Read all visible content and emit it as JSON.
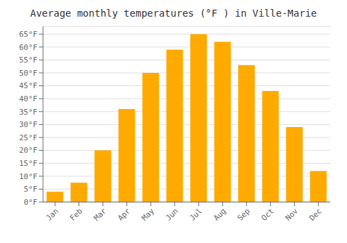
{
  "chart_data": {
    "type": "bar",
    "title": "Average monthly temperatures (°F ) in Ville-Marie",
    "categories": [
      "Jan",
      "Feb",
      "Mar",
      "Apr",
      "May",
      "Jun",
      "Jul",
      "Aug",
      "Sep",
      "Oct",
      "Nov",
      "Dec"
    ],
    "values": [
      4,
      7.5,
      20,
      36,
      50,
      59,
      65,
      62,
      53,
      43,
      29,
      12
    ],
    "color": "#FFAA00",
    "ylim": [
      0,
      68
    ],
    "yticks": [
      {
        "value": 0,
        "label": "0°F"
      },
      {
        "value": 5,
        "label": "5°F"
      },
      {
        "value": 10,
        "label": "10°F"
      },
      {
        "value": 15,
        "label": "15°F"
      },
      {
        "value": 20,
        "label": "20°F"
      },
      {
        "value": 25,
        "label": "25°F"
      },
      {
        "value": 30,
        "label": "30°F"
      },
      {
        "value": 35,
        "label": "35°F"
      },
      {
        "value": 40,
        "label": "40°F"
      },
      {
        "value": 45,
        "label": "45°F"
      },
      {
        "value": 50,
        "label": "50°F"
      },
      {
        "value": 55,
        "label": "55°F"
      },
      {
        "value": 60,
        "label": "60°F"
      },
      {
        "value": 65,
        "label": "65°F"
      }
    ],
    "grid": true
  }
}
